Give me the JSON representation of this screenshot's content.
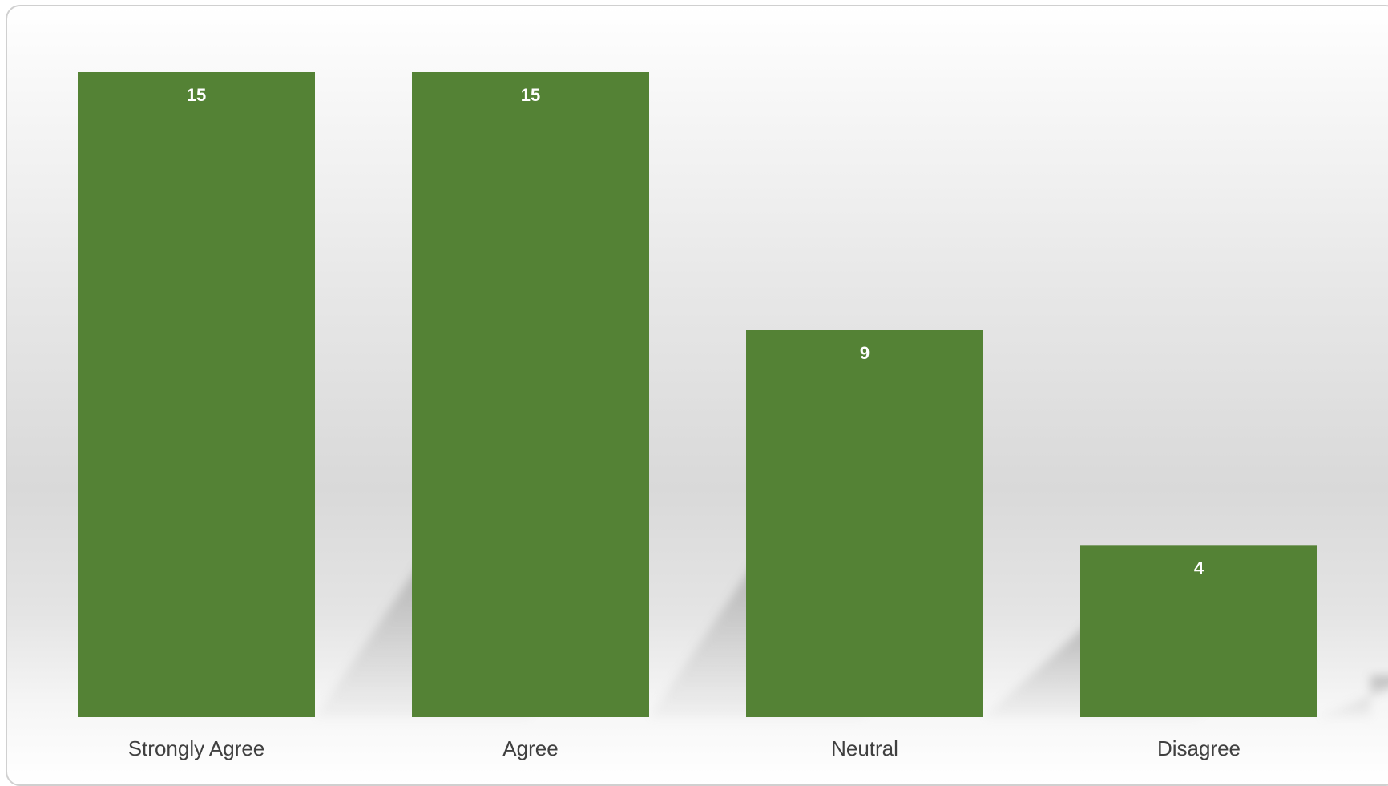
{
  "chart_data": {
    "type": "bar",
    "categories": [
      "Strongly Agree",
      "Agree",
      "Neutral",
      "Disagree"
    ],
    "values": [
      15,
      15,
      9,
      4
    ],
    "data_labels": [
      "15",
      "15",
      "9",
      "4"
    ],
    "title": "",
    "xlabel": "",
    "ylabel": "",
    "ylim": [
      0,
      15
    ],
    "grid": false,
    "legend": "none",
    "bar_color": "#548235",
    "label_color": "#ffffff",
    "tick_color": "#404040"
  }
}
